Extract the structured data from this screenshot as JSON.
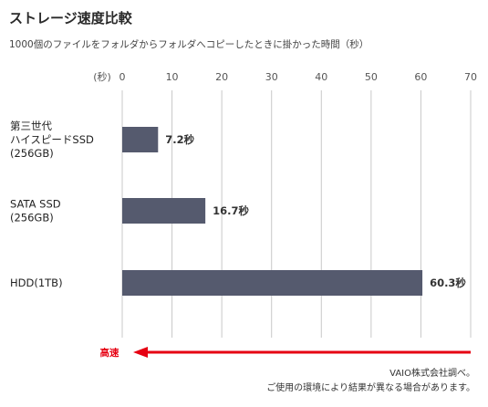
{
  "header": {
    "title": "ストレージ速度比較",
    "subtitle": "1000個のファイルをフォルダからフォルダへコピーしたときに掛かった時間（秒）"
  },
  "chart_data": {
    "type": "bar",
    "orientation": "horizontal",
    "categories": [
      [
        "第三世代",
        "ハイスピードSSD",
        "(256GB)"
      ],
      [
        "SATA SSD",
        "(256GB)"
      ],
      [
        "HDD(1TB)"
      ]
    ],
    "values": [
      7.2,
      16.7,
      60.3
    ],
    "value_labels": [
      "7.2秒",
      "16.7秒",
      "60.3秒"
    ],
    "axis_unit_label": "(秒)",
    "ticks": [
      0,
      10,
      20,
      30,
      40,
      50,
      60,
      70
    ],
    "xlim": [
      0,
      70
    ],
    "grid": true,
    "annotation": "高速",
    "colors": {
      "bar": "#555a6e",
      "grid": "#c8c8c8",
      "arrow": "#e60012"
    }
  },
  "footnote": {
    "line1": "VAIO株式会社調べ。",
    "line2": "ご使用の環境により結果が異なる場合があります。"
  }
}
